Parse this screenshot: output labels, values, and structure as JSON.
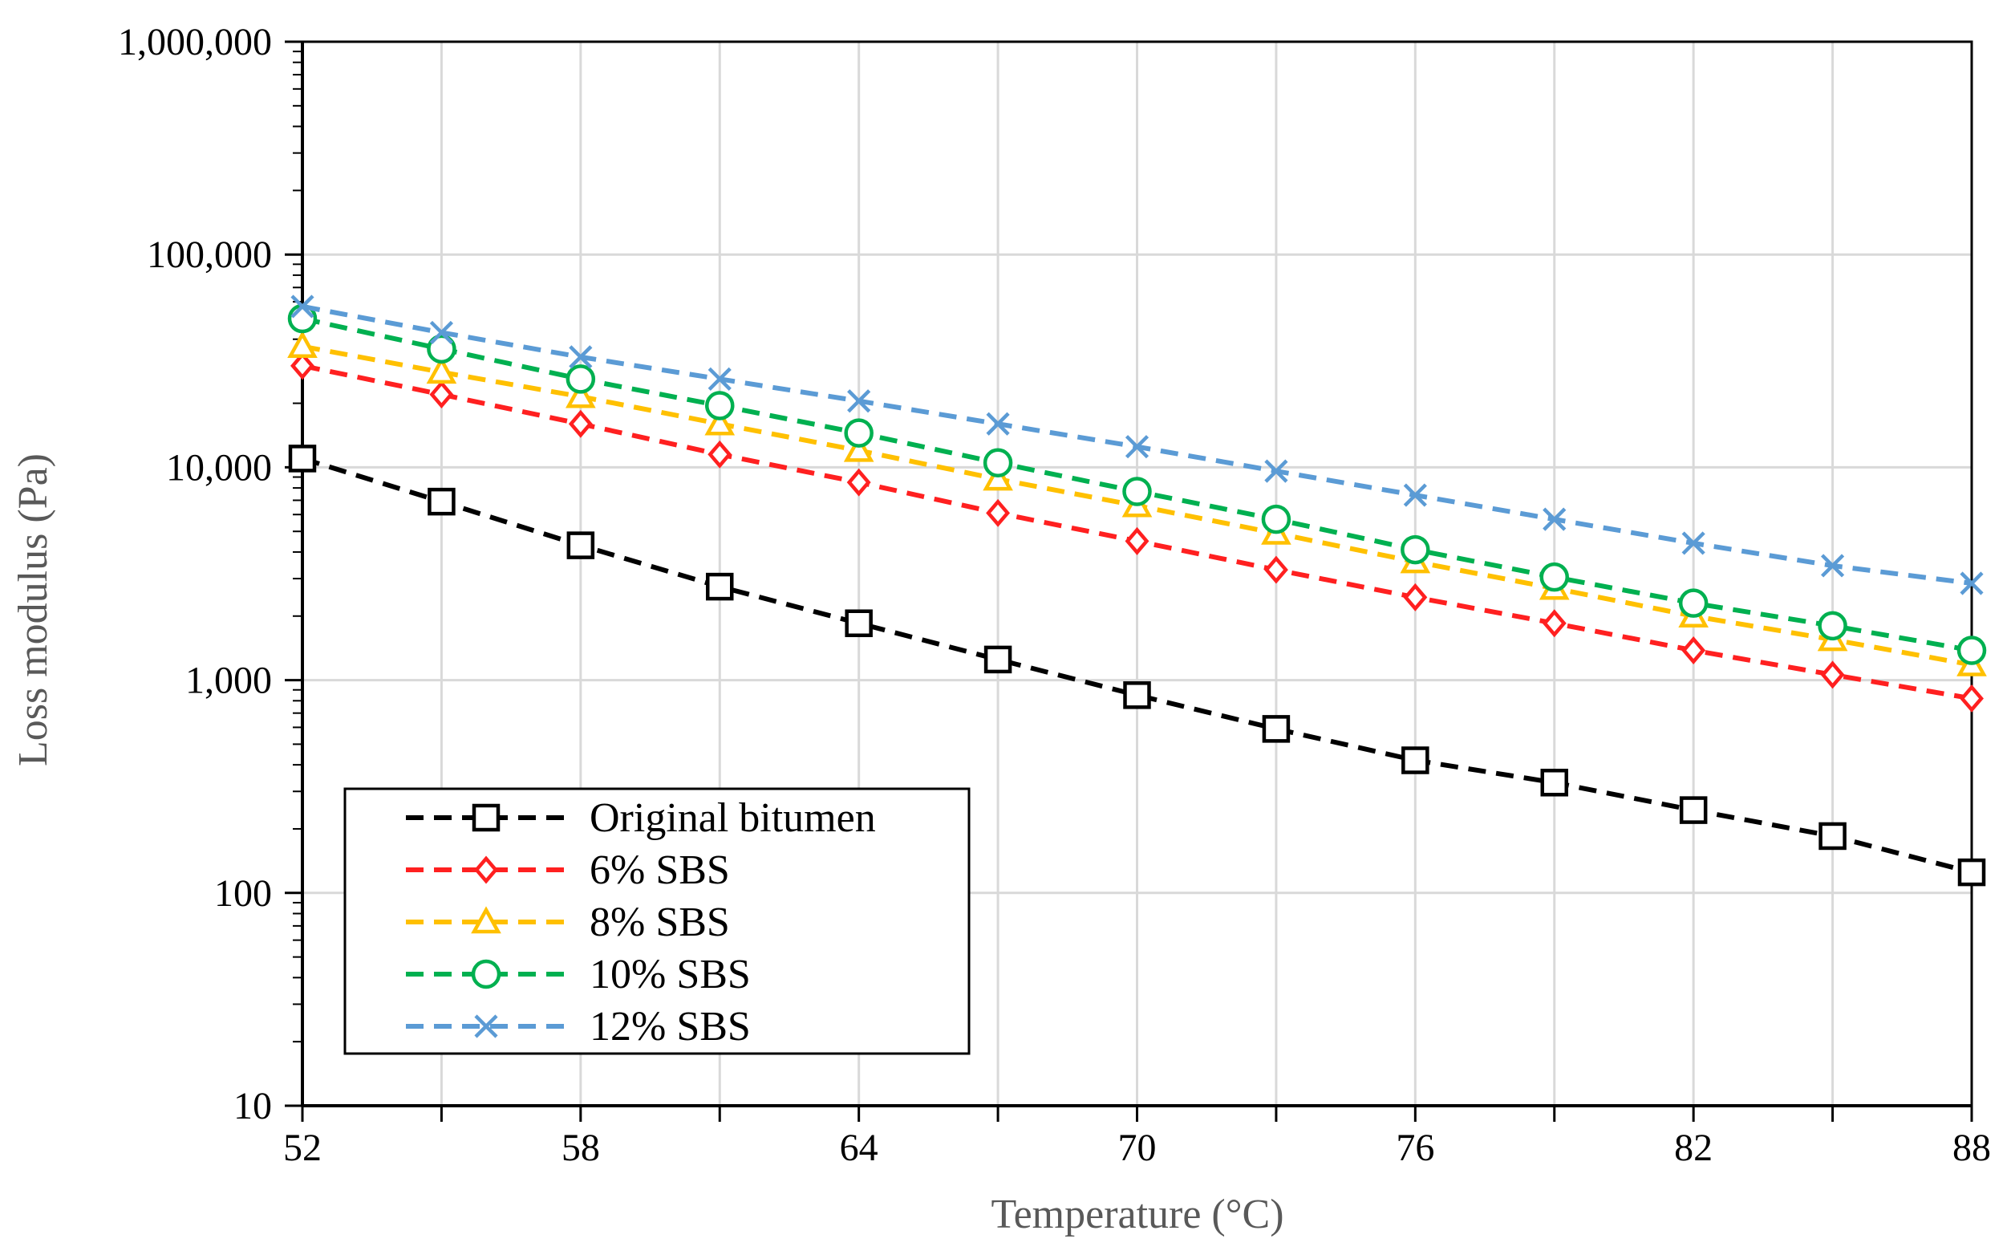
{
  "chart_data": {
    "type": "line",
    "title": "",
    "xlabel": "Temperature (°C)",
    "ylabel": "Loss modulus (Pa)",
    "xlim": [
      52,
      88
    ],
    "ylim": [
      10,
      1000000
    ],
    "yscale": "log",
    "grid": true,
    "legend_position": "bottom-left",
    "x_ticks": [
      52,
      58,
      64,
      70,
      76,
      82,
      88
    ],
    "x_tick_labels": [
      "52",
      "58",
      "64",
      "70",
      "76",
      "82",
      "88"
    ],
    "y_ticks": [
      10,
      100,
      1000,
      10000,
      100000,
      1000000
    ],
    "y_tick_labels": [
      "10",
      "100",
      "1,000",
      "10,000",
      "100,000",
      "1,000,000"
    ],
    "x": [
      52,
      55,
      58,
      61,
      64,
      67,
      70,
      73,
      76,
      79,
      82,
      85,
      88
    ],
    "series": [
      {
        "name": "Original bitumen",
        "color": "#000000",
        "marker": "square",
        "values": [
          11000,
          6900,
          4300,
          2750,
          1850,
          1250,
          850,
          590,
          420,
          330,
          245,
          185,
          125
        ]
      },
      {
        "name": "6% SBS",
        "color": "#ff2020",
        "marker": "diamond",
        "values": [
          30000,
          22000,
          16000,
          11500,
          8500,
          6100,
          4500,
          3300,
          2450,
          1850,
          1380,
          1060,
          820
        ]
      },
      {
        "name": "8% SBS",
        "color": "#ffc000",
        "marker": "triangle",
        "values": [
          37000,
          28000,
          21500,
          16000,
          12000,
          8800,
          6600,
          4900,
          3600,
          2700,
          2000,
          1550,
          1180
        ]
      },
      {
        "name": "10% SBS",
        "color": "#00b050",
        "marker": "circle",
        "values": [
          50000,
          36000,
          26000,
          19500,
          14500,
          10500,
          7700,
          5700,
          4100,
          3050,
          2300,
          1800,
          1380
        ]
      },
      {
        "name": "12% SBS",
        "color": "#5b9bd5",
        "marker": "x",
        "values": [
          57000,
          43000,
          33000,
          26000,
          20500,
          16000,
          12500,
          9600,
          7400,
          5700,
          4400,
          3450,
          2850
        ]
      }
    ]
  }
}
